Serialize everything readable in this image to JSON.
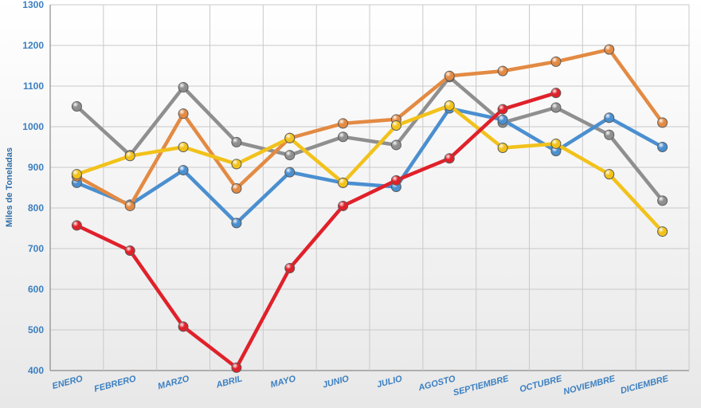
{
  "chart_data": {
    "type": "line",
    "title": "",
    "xlabel": "",
    "ylabel": "Miles de Toneladas",
    "ylim": [
      400,
      1300
    ],
    "yticks": [
      400,
      500,
      600,
      700,
      800,
      900,
      1000,
      1100,
      1200,
      1300
    ],
    "grid": true,
    "categories": [
      "ENERO",
      "FEBRERO",
      "MARZO",
      "ABRIL",
      "MAYO",
      "JUNIO",
      "JULIO",
      "AGOSTO",
      "SEPTIEMBRE",
      "OCTUBRE",
      "NOVIEMBRE",
      "DICIEMBRE"
    ],
    "series": [
      {
        "color": "#8f8f8f",
        "values": [
          1050,
          930,
          1097,
          962,
          930,
          975,
          955,
          1122,
          1010,
          1047,
          980,
          818
        ]
      },
      {
        "color": "#4a8fd0",
        "values": [
          862,
          808,
          893,
          763,
          888,
          862,
          852,
          1045,
          1017,
          940,
          1022,
          950
        ]
      },
      {
        "color": "#e38a43",
        "values": [
          878,
          805,
          1032,
          848,
          972,
          1008,
          1018,
          1125,
          1137,
          1160,
          1190,
          1010
        ]
      },
      {
        "color": "#f2c21b",
        "values": [
          883,
          928,
          950,
          908,
          972,
          862,
          1003,
          1052,
          948,
          958,
          883,
          742
        ]
      },
      {
        "color": "#e0212a",
        "values": [
          757,
          695,
          508,
          407,
          652,
          805,
          868,
          922,
          1043,
          1083,
          null,
          null
        ]
      }
    ]
  }
}
